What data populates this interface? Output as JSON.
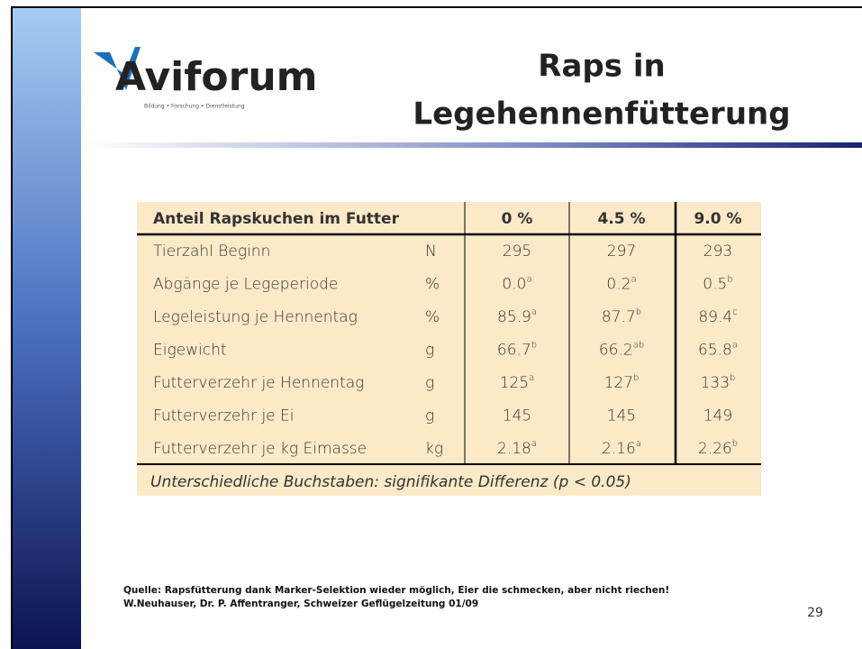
{
  "logo": {
    "name": "Aviforum",
    "tagline": "Bildung • Forschung • Dienstleistung"
  },
  "title": [
    "Raps in",
    "Legehennenfütterung"
  ],
  "table": {
    "header": [
      "Anteil Rapskuchen im Futter",
      "0 %",
      "4.5 %",
      "9.0 %"
    ],
    "rows": [
      {
        "label": "Tierzahl Beginn",
        "unit": "N",
        "cells": [
          {
            "value": "295",
            "sup": ""
          },
          {
            "value": "297",
            "sup": ""
          },
          {
            "value": "293",
            "sup": ""
          }
        ]
      },
      {
        "label": "Abgänge je Legeperiode",
        "unit": "%",
        "cells": [
          {
            "value": "0.0",
            "sup": "a"
          },
          {
            "value": "0.2",
            "sup": "a"
          },
          {
            "value": "0.5",
            "sup": "b"
          }
        ]
      },
      {
        "label": "Legeleistung je Hennentag",
        "unit": "%",
        "cells": [
          {
            "value": "85.9",
            "sup": "a"
          },
          {
            "value": "87.7",
            "sup": "b"
          },
          {
            "value": "89.4",
            "sup": "c"
          }
        ]
      },
      {
        "label": "Eigewicht",
        "unit": "g",
        "cells": [
          {
            "value": "66.7",
            "sup": "b"
          },
          {
            "value": "66.2",
            "sup": "ab"
          },
          {
            "value": "65.8",
            "sup": "a"
          }
        ]
      },
      {
        "label": "Futterverzehr je Hennentag",
        "unit": "g",
        "cells": [
          {
            "value": "125",
            "sup": "a"
          },
          {
            "value": "127",
            "sup": "b"
          },
          {
            "value": "133",
            "sup": "b"
          }
        ]
      },
      {
        "label": "Futterverzehr je Ei",
        "unit": "g",
        "cells": [
          {
            "value": "145",
            "sup": ""
          },
          {
            "value": "145",
            "sup": ""
          },
          {
            "value": "149",
            "sup": ""
          }
        ]
      },
      {
        "label": "Futterverzehr je kg Eimasse",
        "unit": "kg",
        "cells": [
          {
            "value": "2.18",
            "sup": "a"
          },
          {
            "value": "2.16",
            "sup": "a"
          },
          {
            "value": "2.26",
            "sup": "b"
          }
        ]
      }
    ],
    "footnote": "Unterschiedliche Buchstaben: signifikante Differenz (p < 0.05)"
  },
  "source": [
    "Quelle: Rapsfütterung dank Marker-Selektion wieder möglich, Eier die schmecken, aber nicht riechen!",
    "W.Neuhauser, Dr. P. Affentranger, Schweizer Geflügelzeitung 01/09"
  ],
  "page_number": "29"
}
